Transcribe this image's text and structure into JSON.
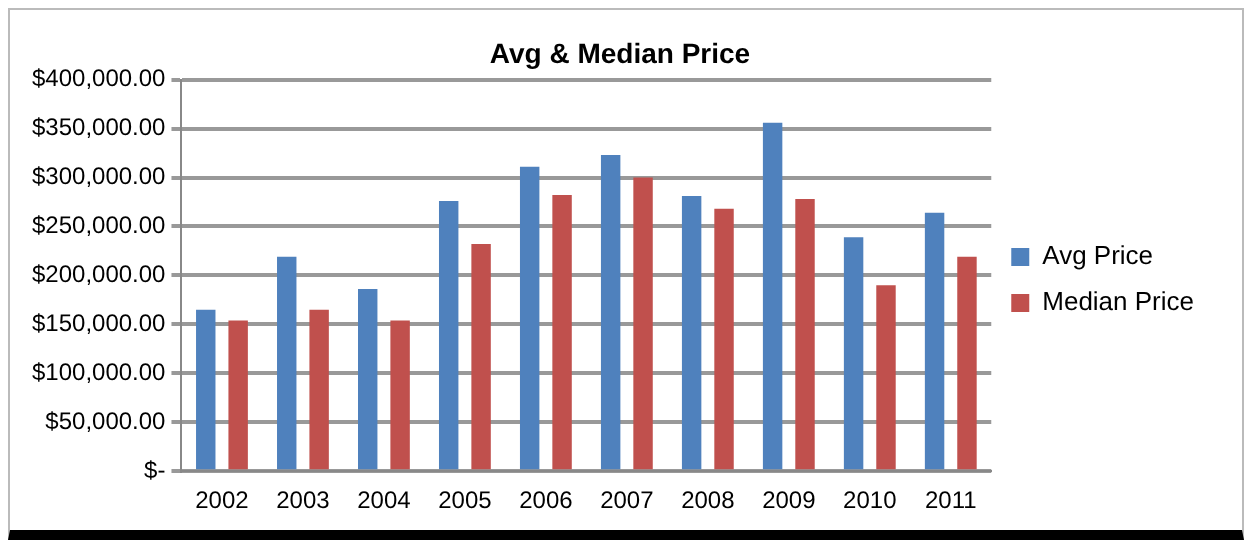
{
  "chart_data": {
    "type": "bar",
    "title": "Avg & Median Price",
    "categories": [
      "2002",
      "2003",
      "2004",
      "2005",
      "2006",
      "2007",
      "2008",
      "2009",
      "2010",
      "2011"
    ],
    "series": [
      {
        "name": "Avg Price",
        "color": "#4f81bd",
        "values": [
          165000,
          219000,
          186000,
          276000,
          311000,
          323000,
          281000,
          356000,
          239000,
          264000
        ]
      },
      {
        "name": "Median Price",
        "color": "#c0504d",
        "values": [
          154000,
          165000,
          154000,
          232000,
          282000,
          300000,
          268000,
          278000,
          190000,
          219000
        ]
      }
    ],
    "ylim": [
      0,
      400000
    ],
    "yticks": [
      {
        "value": 0,
        "label": "$-"
      },
      {
        "value": 50000,
        "label": "$50,000.00"
      },
      {
        "value": 100000,
        "label": "$100,000.00"
      },
      {
        "value": 150000,
        "label": "$150,000.00"
      },
      {
        "value": 200000,
        "label": "$200,000.00"
      },
      {
        "value": 250000,
        "label": "$250,000.00"
      },
      {
        "value": 300000,
        "label": "$300,000.00"
      },
      {
        "value": 350000,
        "label": "$350,000.00"
      },
      {
        "value": 400000,
        "label": "$400,000.00"
      }
    ],
    "grid": "y",
    "legend": "right"
  }
}
